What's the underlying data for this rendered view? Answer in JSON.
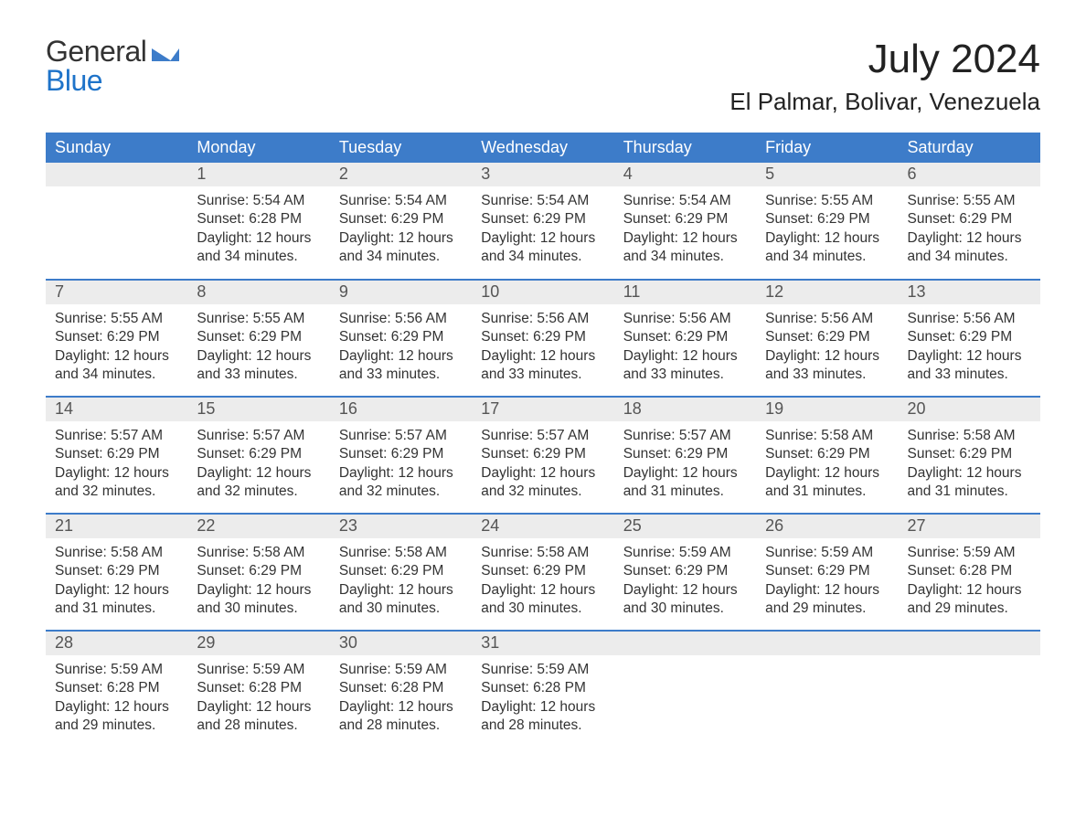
{
  "logo": {
    "line1": "General",
    "line2": "Blue"
  },
  "header": {
    "month_title": "July 2024",
    "location": "El Palmar, Bolivar, Venezuela"
  },
  "style": {
    "brand_blue": "#3d7cc9",
    "logo_blue": "#1e73c9",
    "header_row_bg": "#3d7cc9",
    "header_row_text": "#ffffff",
    "daynum_bg": "#ececec",
    "daynum_text": "#555555",
    "body_text": "#333333",
    "page_bg": "#ffffff",
    "separator_color": "#3d7cc9",
    "month_title_fontsize": 44,
    "location_fontsize": 26,
    "dayheader_fontsize": 18,
    "daynum_fontsize": 18,
    "body_fontsize": 15.5,
    "columns": 7,
    "rows_of_weeks": 5
  },
  "day_headers": [
    "Sunday",
    "Monday",
    "Tuesday",
    "Wednesday",
    "Thursday",
    "Friday",
    "Saturday"
  ],
  "labels": {
    "sunrise": "Sunrise:",
    "sunset": "Sunset:",
    "daylight": "Daylight:"
  },
  "weeks": [
    [
      {
        "blank": true
      },
      {
        "n": "1",
        "sunrise": "5:54 AM",
        "sunset": "6:28 PM",
        "daylight": "12 hours and 34 minutes."
      },
      {
        "n": "2",
        "sunrise": "5:54 AM",
        "sunset": "6:29 PM",
        "daylight": "12 hours and 34 minutes."
      },
      {
        "n": "3",
        "sunrise": "5:54 AM",
        "sunset": "6:29 PM",
        "daylight": "12 hours and 34 minutes."
      },
      {
        "n": "4",
        "sunrise": "5:54 AM",
        "sunset": "6:29 PM",
        "daylight": "12 hours and 34 minutes."
      },
      {
        "n": "5",
        "sunrise": "5:55 AM",
        "sunset": "6:29 PM",
        "daylight": "12 hours and 34 minutes."
      },
      {
        "n": "6",
        "sunrise": "5:55 AM",
        "sunset": "6:29 PM",
        "daylight": "12 hours and 34 minutes."
      }
    ],
    [
      {
        "n": "7",
        "sunrise": "5:55 AM",
        "sunset": "6:29 PM",
        "daylight": "12 hours and 34 minutes."
      },
      {
        "n": "8",
        "sunrise": "5:55 AM",
        "sunset": "6:29 PM",
        "daylight": "12 hours and 33 minutes."
      },
      {
        "n": "9",
        "sunrise": "5:56 AM",
        "sunset": "6:29 PM",
        "daylight": "12 hours and 33 minutes."
      },
      {
        "n": "10",
        "sunrise": "5:56 AM",
        "sunset": "6:29 PM",
        "daylight": "12 hours and 33 minutes."
      },
      {
        "n": "11",
        "sunrise": "5:56 AM",
        "sunset": "6:29 PM",
        "daylight": "12 hours and 33 minutes."
      },
      {
        "n": "12",
        "sunrise": "5:56 AM",
        "sunset": "6:29 PM",
        "daylight": "12 hours and 33 minutes."
      },
      {
        "n": "13",
        "sunrise": "5:56 AM",
        "sunset": "6:29 PM",
        "daylight": "12 hours and 33 minutes."
      }
    ],
    [
      {
        "n": "14",
        "sunrise": "5:57 AM",
        "sunset": "6:29 PM",
        "daylight": "12 hours and 32 minutes."
      },
      {
        "n": "15",
        "sunrise": "5:57 AM",
        "sunset": "6:29 PM",
        "daylight": "12 hours and 32 minutes."
      },
      {
        "n": "16",
        "sunrise": "5:57 AM",
        "sunset": "6:29 PM",
        "daylight": "12 hours and 32 minutes."
      },
      {
        "n": "17",
        "sunrise": "5:57 AM",
        "sunset": "6:29 PM",
        "daylight": "12 hours and 32 minutes."
      },
      {
        "n": "18",
        "sunrise": "5:57 AM",
        "sunset": "6:29 PM",
        "daylight": "12 hours and 31 minutes."
      },
      {
        "n": "19",
        "sunrise": "5:58 AM",
        "sunset": "6:29 PM",
        "daylight": "12 hours and 31 minutes."
      },
      {
        "n": "20",
        "sunrise": "5:58 AM",
        "sunset": "6:29 PM",
        "daylight": "12 hours and 31 minutes."
      }
    ],
    [
      {
        "n": "21",
        "sunrise": "5:58 AM",
        "sunset": "6:29 PM",
        "daylight": "12 hours and 31 minutes."
      },
      {
        "n": "22",
        "sunrise": "5:58 AM",
        "sunset": "6:29 PM",
        "daylight": "12 hours and 30 minutes."
      },
      {
        "n": "23",
        "sunrise": "5:58 AM",
        "sunset": "6:29 PM",
        "daylight": "12 hours and 30 minutes."
      },
      {
        "n": "24",
        "sunrise": "5:58 AM",
        "sunset": "6:29 PM",
        "daylight": "12 hours and 30 minutes."
      },
      {
        "n": "25",
        "sunrise": "5:59 AM",
        "sunset": "6:29 PM",
        "daylight": "12 hours and 30 minutes."
      },
      {
        "n": "26",
        "sunrise": "5:59 AM",
        "sunset": "6:29 PM",
        "daylight": "12 hours and 29 minutes."
      },
      {
        "n": "27",
        "sunrise": "5:59 AM",
        "sunset": "6:28 PM",
        "daylight": "12 hours and 29 minutes."
      }
    ],
    [
      {
        "n": "28",
        "sunrise": "5:59 AM",
        "sunset": "6:28 PM",
        "daylight": "12 hours and 29 minutes."
      },
      {
        "n": "29",
        "sunrise": "5:59 AM",
        "sunset": "6:28 PM",
        "daylight": "12 hours and 28 minutes."
      },
      {
        "n": "30",
        "sunrise": "5:59 AM",
        "sunset": "6:28 PM",
        "daylight": "12 hours and 28 minutes."
      },
      {
        "n": "31",
        "sunrise": "5:59 AM",
        "sunset": "6:28 PM",
        "daylight": "12 hours and 28 minutes."
      },
      {
        "blank": true
      },
      {
        "blank": true
      },
      {
        "blank": true
      }
    ]
  ]
}
